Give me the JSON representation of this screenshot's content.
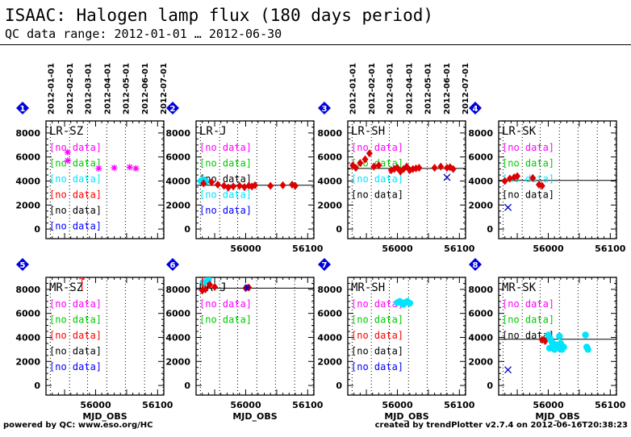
{
  "header": {
    "title": "ISAAC: Halogen lamp flux (180 days period)",
    "subtitle": "QC data range: 2012-01-01 … 2012-06-30"
  },
  "footer": {
    "left": "powered by QC: www.eso.org/HC",
    "right": "created by trendPlotter v2.7.4 on 2012-06-16T20:38:23"
  },
  "date_ticks": [
    "2012-01-01",
    "2012-02-01",
    "2012-03-01",
    "2012-04-01",
    "2012-05-01",
    "2012-06-01",
    "2012-07-01"
  ],
  "colors": {
    "magenta": "#ff00ff",
    "green": "#00cc00",
    "cyan": "#00e5ff",
    "red": "#ff0000",
    "black": "#000000",
    "blue": "#0000ff",
    "marker_red": "#dd0000",
    "marker_blue": "#0000cc",
    "badge_blue": "#0000dd"
  },
  "chart_data": [
    {
      "type": "scatter",
      "badge": "1",
      "title": "LR-SZ",
      "xlabel": "",
      "ylabel": "",
      "xlim": [
        55920,
        56110
      ],
      "ylim": [
        -800,
        9000
      ],
      "xticks": [
        56000,
        56100
      ],
      "yticks": [
        0,
        2000,
        4000,
        6000,
        8000
      ],
      "show_date_axis": true,
      "show_xticklabels": false,
      "reference_line": null,
      "labels": [
        {
          "text": "[no data]",
          "color": "magenta"
        },
        {
          "text": "[no data]",
          "color": "green"
        },
        {
          "text": "[no data]",
          "color": "cyan"
        },
        {
          "text": "[no data]",
          "color": "red"
        },
        {
          "text": "[no data]",
          "color": "black"
        },
        {
          "text": "[no data]",
          "color": "blue"
        }
      ],
      "series": [
        {
          "color": "magenta",
          "marker": "star",
          "points": [
            [
              55955,
              6400
            ],
            [
              55955,
              5700
            ],
            [
              56005,
              5050
            ],
            [
              56030,
              5100
            ],
            [
              56055,
              5150
            ],
            [
              56065,
              5050
            ]
          ]
        }
      ]
    },
    {
      "type": "scatter",
      "badge": "2",
      "title": "LR-J",
      "xlabel": "",
      "ylabel": "",
      "xlim": [
        55920,
        56110
      ],
      "ylim": [
        -800,
        9000
      ],
      "xticks": [
        56000,
        56100
      ],
      "yticks": [
        0,
        2000,
        4000,
        6000,
        8000
      ],
      "show_date_axis": false,
      "show_xticklabels": true,
      "reference_line": 3650,
      "labels": [
        {
          "text": "[no data]",
          "color": "magenta"
        },
        {
          "text": "[no data]",
          "color": "green"
        },
        {
          "text": "[no data]",
          "color": "black"
        },
        {
          "text": "[no data]",
          "color": "cyan"
        },
        {
          "text": "[no data]",
          "color": "blue"
        }
      ],
      "series": [
        {
          "color": "cyan",
          "marker": "dot",
          "points": [
            [
              55928,
              4000
            ],
            [
              55932,
              4100
            ],
            [
              55936,
              3950
            ]
          ]
        },
        {
          "color": "marker_red",
          "marker": "diamond",
          "points": [
            [
              55932,
              3800
            ],
            [
              55945,
              3900
            ],
            [
              55955,
              3700
            ],
            [
              55965,
              3600
            ],
            [
              55972,
              3450
            ],
            [
              55980,
              3550
            ],
            [
              55990,
              3600
            ],
            [
              55998,
              3500
            ],
            [
              56005,
              3600
            ],
            [
              56010,
              3550
            ],
            [
              56015,
              3650
            ],
            [
              56040,
              3600
            ],
            [
              56060,
              3650
            ],
            [
              56075,
              3700
            ],
            [
              56080,
              3600
            ]
          ]
        }
      ]
    },
    {
      "type": "scatter",
      "badge": "3",
      "title": "LR-SH",
      "xlabel": "",
      "ylabel": "",
      "xlim": [
        55920,
        56110
      ],
      "ylim": [
        -800,
        9000
      ],
      "xticks": [
        56000,
        56100
      ],
      "yticks": [
        0,
        2000,
        4000,
        6000,
        8000
      ],
      "show_date_axis": true,
      "show_xticklabels": true,
      "reference_line": 5050,
      "labels": [
        {
          "text": "[no data]",
          "color": "magenta"
        },
        {
          "text": "[no data]",
          "color": "green"
        },
        {
          "text": "[no data]",
          "color": "cyan"
        },
        {
          "text": "[no data]",
          "color": "black"
        }
      ],
      "series": [
        {
          "color": "marker_red",
          "marker": "diamond",
          "points": [
            [
              55928,
              5300
            ],
            [
              55933,
              5100
            ],
            [
              55940,
              5500
            ],
            [
              55948,
              5800
            ],
            [
              55955,
              6300
            ],
            [
              55962,
              5200
            ],
            [
              55970,
              5300
            ],
            [
              55990,
              4900
            ],
            [
              55995,
              5000
            ],
            [
              56000,
              5100
            ],
            [
              56005,
              4800
            ],
            [
              56010,
              5000
            ],
            [
              56015,
              5200
            ],
            [
              56020,
              4900
            ],
            [
              56025,
              5000
            ],
            [
              56030,
              5050
            ],
            [
              56035,
              5100
            ],
            [
              56060,
              5100
            ],
            [
              56070,
              5200
            ],
            [
              56080,
              5100
            ],
            [
              56085,
              5150
            ],
            [
              56090,
              5000
            ]
          ]
        },
        {
          "color": "marker_blue",
          "marker": "cross",
          "points": [
            [
              56080,
              4300
            ]
          ]
        }
      ]
    },
    {
      "type": "scatter",
      "badge": "4",
      "title": "LR-SK",
      "xlabel": "",
      "ylabel": "",
      "xlim": [
        55920,
        56110
      ],
      "ylim": [
        -800,
        9000
      ],
      "xticks": [
        56000,
        56100
      ],
      "yticks": [
        0,
        2000,
        4000,
        6000,
        8000
      ],
      "show_date_axis": false,
      "show_xticklabels": true,
      "reference_line": 4050,
      "labels": [
        {
          "text": "[no data]",
          "color": "magenta"
        },
        {
          "text": "[no data]",
          "color": "green"
        },
        {
          "text": "[no data]",
          "color": "cyan"
        },
        {
          "text": "[no data]",
          "color": "black"
        }
      ],
      "series": [
        {
          "color": "marker_red",
          "marker": "diamond",
          "points": [
            [
              55930,
              4000
            ],
            [
              55938,
              4200
            ],
            [
              55945,
              4300
            ],
            [
              55950,
              4400
            ],
            [
              55975,
              4250
            ],
            [
              55985,
              3700
            ],
            [
              55990,
              3600
            ]
          ]
        },
        {
          "color": "marker_blue",
          "marker": "cross",
          "points": [
            [
              55935,
              1800
            ]
          ]
        }
      ]
    },
    {
      "type": "scatter",
      "badge": "5",
      "title": "MR-SZ",
      "xlabel": "MJD_OBS",
      "ylabel": "",
      "xlim": [
        55920,
        56110
      ],
      "ylim": [
        -800,
        9000
      ],
      "xticks": [
        56000,
        56100
      ],
      "yticks": [
        0,
        2000,
        4000,
        6000,
        8000
      ],
      "show_date_axis": false,
      "show_xticklabels": true,
      "reference_line": null,
      "labels": [
        {
          "text": "[no data]",
          "color": "magenta"
        },
        {
          "text": "[no data]",
          "color": "green"
        },
        {
          "text": "[no data]",
          "color": "red"
        },
        {
          "text": "[no data]",
          "color": "black"
        },
        {
          "text": "[no data]",
          "color": "blue"
        }
      ],
      "series": [
        {
          "color": "red",
          "marker": "arrow_up",
          "points": [
            [
              55978,
              8700
            ]
          ]
        }
      ]
    },
    {
      "type": "scatter",
      "badge": "6",
      "title": "MR-J",
      "xlabel": "MJD_OBS",
      "ylabel": "",
      "xlim": [
        55920,
        56110
      ],
      "ylim": [
        -800,
        9000
      ],
      "xticks": [
        56000,
        56100
      ],
      "yticks": [
        0,
        2000,
        4000,
        6000,
        8000
      ],
      "show_date_axis": false,
      "show_xticklabels": true,
      "reference_line": 8100,
      "labels": [
        {
          "text": "[no data]",
          "color": "magenta"
        },
        {
          "text": "[no data]",
          "color": "green"
        }
      ],
      "series": [
        {
          "color": "cyan",
          "marker": "dot",
          "points": [
            [
              55932,
              8600
            ],
            [
              55940,
              8800
            ]
          ]
        },
        {
          "color": "red",
          "marker": "arrow_up",
          "points": [
            [
              55930,
              8800
            ]
          ]
        },
        {
          "color": "marker_red",
          "marker": "diamond",
          "points": [
            [
              55930,
              7900
            ],
            [
              55935,
              8000
            ],
            [
              55942,
              8400
            ],
            [
              55950,
              8200
            ],
            [
              56000,
              8100
            ],
            [
              56005,
              8150
            ]
          ]
        },
        {
          "color": "marker_blue",
          "marker": "star",
          "points": [
            [
              56002,
              8150
            ]
          ]
        }
      ]
    },
    {
      "type": "scatter",
      "badge": "7",
      "title": "MR-SH",
      "xlabel": "MJD_OBS",
      "ylabel": "",
      "xlim": [
        55920,
        56110
      ],
      "ylim": [
        -800,
        9000
      ],
      "xticks": [
        56000,
        56100
      ],
      "yticks": [
        0,
        2000,
        4000,
        6000,
        8000
      ],
      "show_date_axis": false,
      "show_xticklabels": true,
      "reference_line": null,
      "labels": [
        {
          "text": "[no data]",
          "color": "magenta"
        },
        {
          "text": "[no data]",
          "color": "green"
        },
        {
          "text": "[no data]",
          "color": "red"
        },
        {
          "text": "[no data]",
          "color": "black"
        },
        {
          "text": "[no data]",
          "color": "blue"
        }
      ],
      "series": [
        {
          "color": "cyan",
          "marker": "dot",
          "points": [
            [
              56000,
              6900
            ],
            [
              56004,
              7000
            ],
            [
              56008,
              6800
            ],
            [
              56012,
              6900
            ],
            [
              56016,
              7000
            ],
            [
              56020,
              6850
            ],
            [
              56010,
              6750
            ]
          ]
        }
      ]
    },
    {
      "type": "scatter",
      "badge": "8",
      "title": "MR-SK",
      "xlabel": "MJD_OBS",
      "ylabel": "",
      "xlim": [
        55920,
        56110
      ],
      "ylim": [
        -800,
        9000
      ],
      "xticks": [
        56000,
        56100
      ],
      "yticks": [
        0,
        2000,
        4000,
        6000,
        8000
      ],
      "show_date_axis": false,
      "show_xticklabels": true,
      "reference_line": 3850,
      "labels": [
        {
          "text": "[no data]",
          "color": "magenta"
        },
        {
          "text": "[no data]",
          "color": "green"
        },
        {
          "text": "[no data]",
          "color": "black"
        }
      ],
      "series": [
        {
          "color": "marker_red",
          "marker": "diamond",
          "points": [
            [
              55990,
              3800
            ],
            [
              55995,
              3700
            ]
          ]
        },
        {
          "color": "cyan",
          "marker": "dot",
          "points": [
            [
              56000,
              4200
            ],
            [
              56003,
              3900
            ],
            [
              56006,
              3600
            ],
            [
              56008,
              3200
            ],
            [
              56010,
              3000
            ],
            [
              56012,
              3400
            ],
            [
              56015,
              3100
            ],
            [
              56018,
              4100
            ],
            [
              56020,
              3500
            ],
            [
              56022,
              3000
            ],
            [
              56002,
              3100
            ],
            [
              56025,
              3200
            ],
            [
              56060,
              4200
            ],
            [
              56062,
              3200
            ],
            [
              56064,
              3000
            ]
          ]
        },
        {
          "color": "marker_blue",
          "marker": "cross",
          "points": [
            [
              55935,
              1300
            ]
          ]
        }
      ]
    }
  ]
}
